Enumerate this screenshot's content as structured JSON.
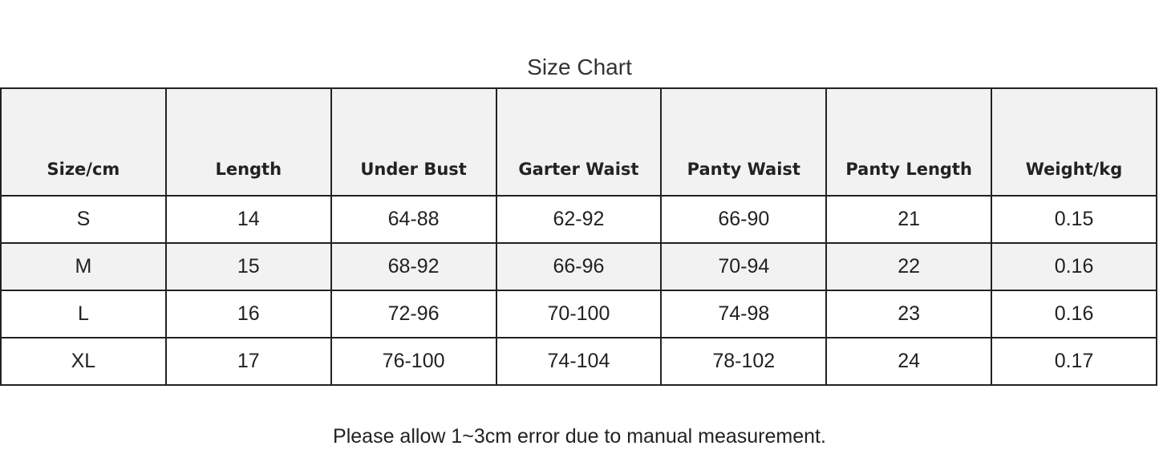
{
  "title": "Size Chart",
  "headers": [
    "Size/cm",
    "Length",
    "Under Bust",
    "Garter Waist",
    "Panty Waist",
    "Panty Length",
    "Weight/kg"
  ],
  "rows": [
    [
      "S",
      "14",
      "64-88",
      "62-92",
      "66-90",
      "21",
      "0.15"
    ],
    [
      "M",
      "15",
      "68-92",
      "66-96",
      "70-94",
      "22",
      "0.16"
    ],
    [
      "L",
      "16",
      "72-96",
      "70-100",
      "74-98",
      "23",
      "0.16"
    ],
    [
      "XL",
      "17",
      "76-100",
      "74-104",
      "78-102",
      "24",
      "0.17"
    ]
  ],
  "note": "Please allow 1~3cm error due to manual measurement.",
  "colors": {
    "header_bg": "#f2f2f2",
    "border": "#222222"
  }
}
